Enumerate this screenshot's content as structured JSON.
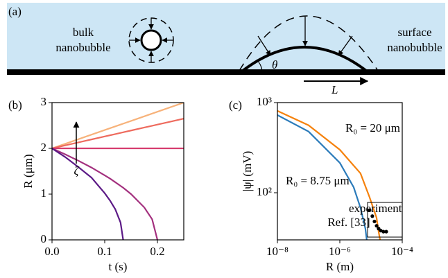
{
  "diagram": {
    "panel_label": "(a)",
    "bulk_label": [
      "bulk",
      "nanobubble"
    ],
    "surface_label": [
      "surface",
      "nanobubble"
    ],
    "angle_label": "θ",
    "length_label": "L"
  },
  "chart_data": [
    {
      "type": "line",
      "panel_label": "(b)",
      "xlabel": "t (s)",
      "ylabel": "R (μm)",
      "annotation": "ζ",
      "xlim": [
        0,
        0.25
      ],
      "ylim": [
        0,
        3
      ],
      "xticks": [
        {
          "value": 0,
          "label": "0.0"
        },
        {
          "value": 0.1,
          "label": "0.1"
        },
        {
          "value": 0.2,
          "label": "0.2"
        }
      ],
      "yticks": [
        0,
        1,
        2,
        3
      ],
      "x": [
        0,
        0.025,
        0.05,
        0.075,
        0.1,
        0.11,
        0.12,
        0.13,
        0.135,
        0.15,
        0.175,
        0.19,
        0.2,
        0.225,
        0.25
      ],
      "series": [
        {
          "color": "#f7b27a",
          "values": [
            2,
            2.1,
            2.2,
            2.3,
            2.4,
            2.44,
            2.48,
            2.52,
            2.54,
            2.6,
            2.7,
            2.76,
            2.8,
            2.9,
            3
          ]
        },
        {
          "color": "#ee6b5e",
          "values": [
            2,
            2.065,
            2.13,
            2.195,
            2.26,
            2.286,
            2.312,
            2.338,
            2.351,
            2.39,
            2.455,
            2.494,
            2.52,
            2.585,
            2.65
          ]
        },
        {
          "color": "#d63d6e",
          "values": [
            2,
            2,
            2,
            2,
            2,
            2,
            2,
            2,
            2,
            2,
            2,
            2,
            2,
            2,
            2
          ]
        },
        {
          "color": "#a3307e",
          "values": [
            2,
            1.87,
            1.73,
            1.58,
            1.41,
            1.34,
            1.26,
            1.18,
            1.14,
            1.0,
            0.71,
            0.45,
            0,
            null,
            null
          ]
        },
        {
          "color": "#5c1a86",
          "values": [
            2,
            1.81,
            1.59,
            1.36,
            1.02,
            0.86,
            0.67,
            0.38,
            0,
            null,
            null,
            null,
            null,
            null,
            null
          ]
        }
      ]
    },
    {
      "type": "line",
      "panel_label": "(c)",
      "xlabel": "R (m)",
      "ylabel": "|ψ| (mV)",
      "log_x": true,
      "log_y": true,
      "xlim": [
        1e-08,
        0.0001
      ],
      "ylim": [
        30,
        1000
      ],
      "xticks": [
        {
          "value": 1e-08,
          "label": "10⁻⁸"
        },
        {
          "value": 1e-06,
          "label": "10⁻⁶"
        },
        {
          "value": 0.0001,
          "label": "10⁻⁴"
        }
      ],
      "yticks": [
        {
          "value": 100,
          "label": "10²"
        },
        {
          "value": 1000,
          "label": "10³"
        }
      ],
      "annotations": [
        "Ref. [33]"
      ],
      "series": [
        {
          "name": "R₀ = 8.75 μm",
          "color": "#2b7bba",
          "x": [
            1e-08,
            1e-07,
            1e-06,
            2.78e-06,
            4.6e-06,
            6.6e-06,
            7.3e-06
          ],
          "values": [
            727,
            477,
            215,
            115,
            68,
            40,
            30
          ]
        },
        {
          "name": "R₀ = 20 μm",
          "color": "#f5820d",
          "x": [
            1e-08,
            1e-07,
            1e-06,
            4.6e-06,
            9e-06,
            1.5e-05,
            1.75e-05,
            1.95e-05
          ],
          "values": [
            810,
            560,
            300,
            164,
            89,
            53,
            37,
            30
          ]
        },
        {
          "name": "experiment",
          "type": "scatter",
          "color": "#000000",
          "x": [
            9e-06,
            1.1e-05,
            1.29e-05,
            1.51e-05,
            1.75e-05,
            2.05e-05,
            2.5e-05,
            3.08e-05
          ],
          "values": [
            64,
            55,
            48,
            43,
            40,
            38,
            37,
            37
          ]
        }
      ]
    }
  ]
}
